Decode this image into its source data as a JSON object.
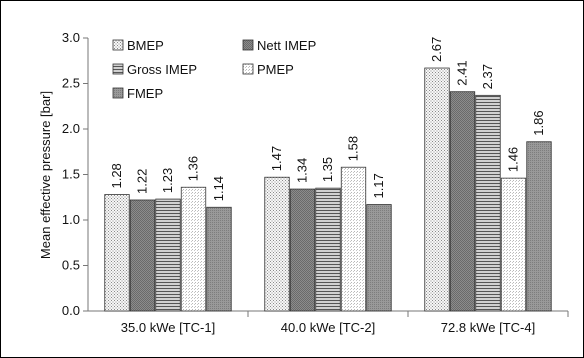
{
  "chart_data": {
    "type": "bar",
    "title": "",
    "xlabel": "",
    "ylabel": "Mean effective pressure [bar]",
    "ylim": [
      0,
      3.0
    ],
    "yticks": [
      "0.0",
      "0.5",
      "1.0",
      "1.5",
      "2.0",
      "2.5",
      "3.0"
    ],
    "categories": [
      "35.0 kWe [TC-1]",
      "40.0 kWe [TC-2]",
      "72.8 kWe [TC-4]"
    ],
    "series": [
      {
        "name": "BMEP",
        "pattern": "dots",
        "values": [
          1.28,
          1.47,
          2.67
        ],
        "labels": [
          "1.28",
          "1.47",
          "2.67"
        ]
      },
      {
        "name": "Nett IMEP",
        "pattern": "dense",
        "values": [
          1.22,
          1.34,
          2.41
        ],
        "labels": [
          "1.22",
          "1.34",
          "2.41"
        ]
      },
      {
        "name": "Gross IMEP",
        "pattern": "hlines",
        "values": [
          1.23,
          1.35,
          2.37
        ],
        "labels": [
          "1.23",
          "1.35",
          "2.37"
        ]
      },
      {
        "name": "PMEP",
        "pattern": "light",
        "values": [
          1.36,
          1.58,
          1.46
        ],
        "labels": [
          "1.36",
          "1.58",
          "1.46"
        ]
      },
      {
        "name": "FMEP",
        "pattern": "medium",
        "values": [
          1.14,
          1.17,
          1.86
        ],
        "labels": [
          "1.14",
          "1.17",
          "1.86"
        ]
      }
    ],
    "legend": "top-left",
    "grid": false
  }
}
